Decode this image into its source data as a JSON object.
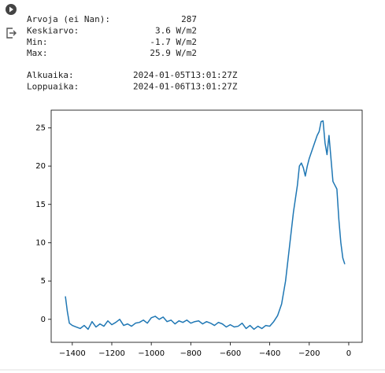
{
  "output_text": {
    "stats": [
      {
        "label": "Arvoja (ei Nan):",
        "value": "287"
      },
      {
        "label": "Keskiarvo:",
        "value": "3.6 W/m2"
      },
      {
        "label": "Min:",
        "value": "-1.7 W/m2"
      },
      {
        "label": "Max:",
        "value": "25.9 W/m2"
      }
    ],
    "times": [
      {
        "label": "Alkuaika:",
        "value": "2024-01-05T13:01:27Z"
      },
      {
        "label": "Loppuaika:",
        "value": "2024-01-06T13:01:27Z"
      }
    ]
  },
  "chart_data": {
    "type": "line",
    "color": "#1f77b4",
    "x": [
      -1435,
      -1425,
      -1415,
      -1400,
      -1380,
      -1360,
      -1340,
      -1320,
      -1300,
      -1280,
      -1260,
      -1240,
      -1220,
      -1200,
      -1180,
      -1160,
      -1140,
      -1120,
      -1100,
      -1080,
      -1060,
      -1040,
      -1020,
      -1000,
      -980,
      -960,
      -940,
      -920,
      -900,
      -880,
      -860,
      -840,
      -820,
      -800,
      -780,
      -760,
      -740,
      -720,
      -700,
      -680,
      -660,
      -640,
      -620,
      -600,
      -580,
      -560,
      -540,
      -520,
      -500,
      -480,
      -460,
      -440,
      -420,
      -400,
      -380,
      -360,
      -340,
      -320,
      -300,
      -280,
      -260,
      -250,
      -240,
      -230,
      -220,
      -210,
      -200,
      -180,
      -160,
      -150,
      -140,
      -130,
      -120,
      -110,
      -100,
      -90,
      -80,
      -70,
      -60,
      -50,
      -40,
      -30,
      -20
    ],
    "values": [
      3.0,
      1.0,
      -0.5,
      -0.8,
      -1.0,
      -1.2,
      -0.8,
      -1.3,
      -0.3,
      -1.0,
      -0.6,
      -0.9,
      -0.2,
      -0.7,
      -0.4,
      0.0,
      -0.8,
      -0.6,
      -0.9,
      -0.5,
      -0.4,
      -0.1,
      -0.5,
      0.2,
      0.4,
      0.0,
      0.3,
      -0.3,
      -0.1,
      -0.6,
      -0.2,
      -0.4,
      -0.1,
      -0.5,
      -0.3,
      -0.2,
      -0.6,
      -0.3,
      -0.5,
      -0.8,
      -0.4,
      -0.6,
      -1.0,
      -0.7,
      -1.0,
      -0.9,
      -0.5,
      -1.2,
      -0.8,
      -1.3,
      -0.9,
      -1.2,
      -0.8,
      -0.9,
      -0.3,
      0.5,
      2.0,
      5.0,
      9.5,
      14.0,
      17.5,
      20.0,
      20.4,
      19.8,
      18.7,
      20.0,
      21.0,
      22.5,
      24.0,
      24.5,
      25.8,
      25.9,
      23.0,
      21.5,
      24.0,
      21.0,
      18.0,
      17.5,
      17.0,
      13.0,
      10.0,
      8.0,
      7.2
    ],
    "xlim": [
      -1507,
      68
    ],
    "ylim": [
      -3,
      27.3
    ],
    "xticks": [
      {
        "value": -1400,
        "label": "−1400"
      },
      {
        "value": -1200,
        "label": "−1200"
      },
      {
        "value": -1000,
        "label": "−1000"
      },
      {
        "value": -800,
        "label": "−800"
      },
      {
        "value": -600,
        "label": "−600"
      },
      {
        "value": -400,
        "label": "−400"
      },
      {
        "value": -200,
        "label": "−200"
      },
      0
    ],
    "yticks": [
      0,
      5,
      10,
      15,
      20,
      25
    ]
  }
}
